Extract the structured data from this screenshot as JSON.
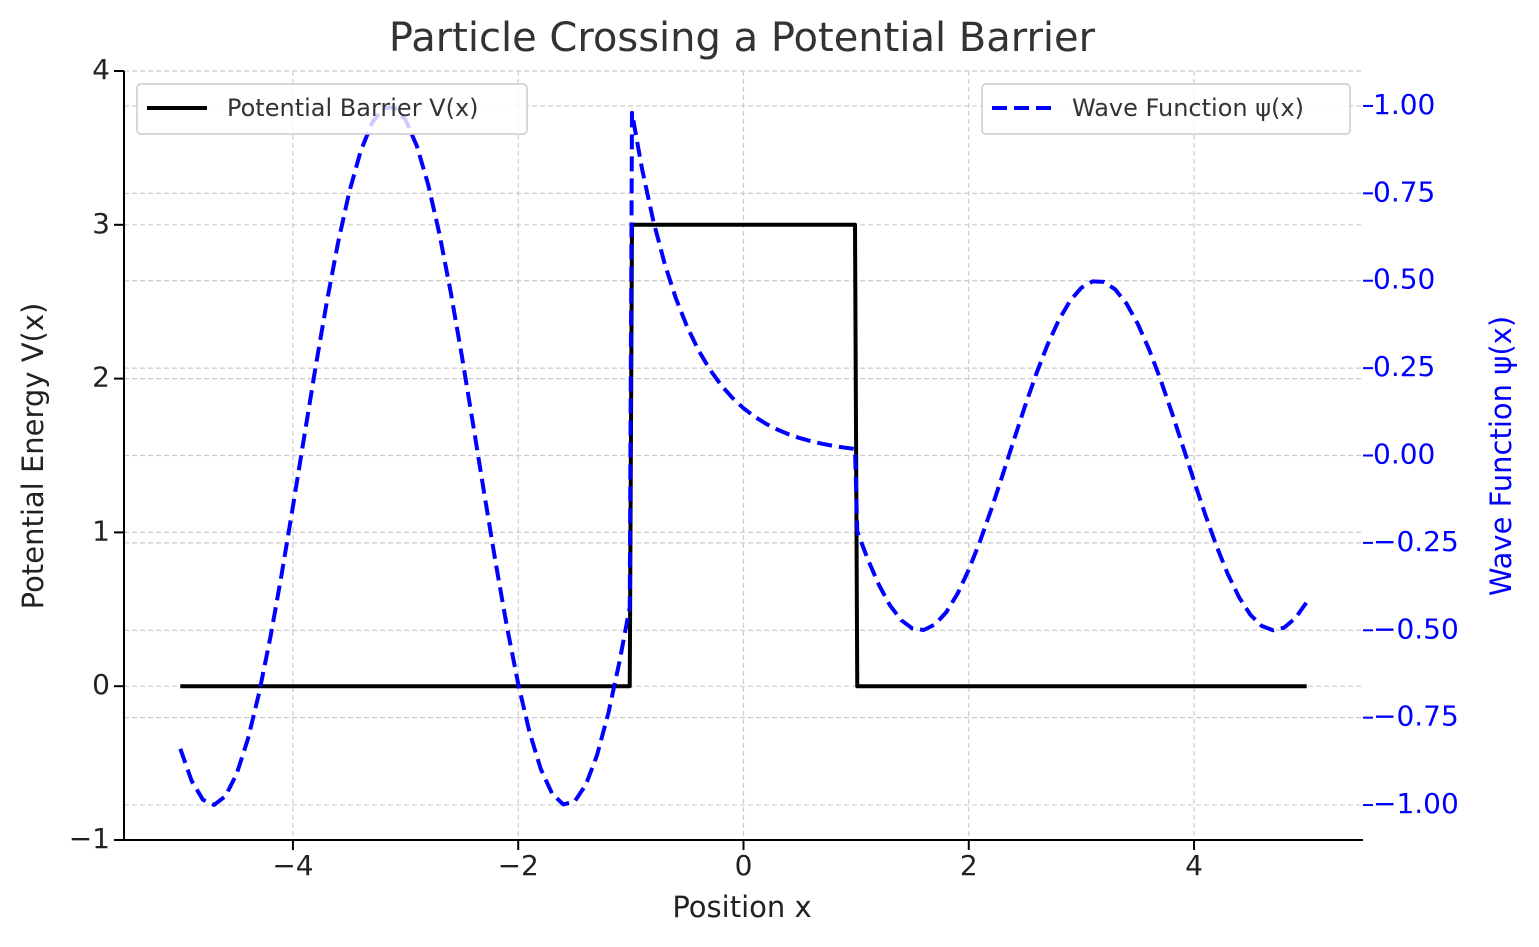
{
  "chart_data": {
    "type": "line",
    "title": "Particle Crossing a Potential Barrier",
    "xlabel": "Position x",
    "ylabel": "Potential Energy V(x)",
    "y2label": "Wave Function ψ(x)",
    "x": [
      -5.0,
      -4.9,
      -4.8,
      -4.7,
      -4.6,
      -4.5,
      -4.4,
      -4.3,
      -4.2,
      -4.1,
      -4.0,
      -3.9,
      -3.8,
      -3.7,
      -3.6,
      -3.5,
      -3.4,
      -3.3,
      -3.2,
      -3.1,
      -3.0,
      -2.9,
      -2.8,
      -2.7,
      -2.6,
      -2.5,
      -2.4,
      -2.3,
      -2.2,
      -2.1,
      -2.0,
      -1.9,
      -1.8,
      -1.7,
      -1.6,
      -1.5,
      -1.4,
      -1.3,
      -1.2,
      -1.1,
      -1.01,
      -0.99,
      -0.9,
      -0.8,
      -0.7,
      -0.6,
      -0.5,
      -0.4,
      -0.3,
      -0.2,
      -0.1,
      0.0,
      0.1,
      0.2,
      0.3,
      0.4,
      0.5,
      0.6,
      0.7,
      0.8,
      0.9,
      0.99,
      1.01,
      1.1,
      1.2,
      1.3,
      1.4,
      1.5,
      1.6,
      1.7,
      1.8,
      1.9,
      2.0,
      2.1,
      2.2,
      2.3,
      2.4,
      2.5,
      2.6,
      2.7,
      2.8,
      2.9,
      3.0,
      3.1,
      3.2,
      3.3,
      3.4,
      3.5,
      3.6,
      3.7,
      3.8,
      3.9,
      4.0,
      4.1,
      4.2,
      4.3,
      4.4,
      4.5,
      4.6,
      4.7,
      4.8,
      4.9,
      5.0
    ],
    "series": [
      {
        "name": "Potential Barrier V(x)",
        "color": "#000000",
        "linestyle": "solid",
        "axis": "y",
        "legend_loc": "upper left",
        "values": [
          0,
          0,
          0,
          0,
          0,
          0,
          0,
          0,
          0,
          0,
          0,
          0,
          0,
          0,
          0,
          0,
          0,
          0,
          0,
          0,
          0,
          0,
          0,
          0,
          0,
          0,
          0,
          0,
          0,
          0,
          0,
          0,
          0,
          0,
          0,
          0,
          0,
          0,
          0,
          0,
          0,
          3,
          3,
          3,
          3,
          3,
          3,
          3,
          3,
          3,
          3,
          3,
          3,
          3,
          3,
          3,
          3,
          3,
          3,
          3,
          3,
          3,
          0,
          0,
          0,
          0,
          0,
          0,
          0,
          0,
          0,
          0,
          0,
          0,
          0,
          0,
          0,
          0,
          0,
          0,
          0,
          0,
          0,
          0,
          0,
          0,
          0,
          0,
          0,
          0,
          0,
          0,
          0,
          0,
          0,
          0,
          0,
          0,
          0,
          0,
          0,
          0,
          0
        ]
      },
      {
        "name": "Wave Function ψ(x)",
        "color": "#0000ff",
        "linestyle": "dashed",
        "axis": "y2",
        "legend_loc": "upper right",
        "values": [
          -0.8391,
          -0.9304,
          -0.9847,
          -0.9997,
          -0.9748,
          -0.9111,
          -0.8111,
          -0.6787,
          -0.5193,
          -0.3392,
          -0.1455,
          0.054,
          0.2513,
          0.4385,
          0.6084,
          0.7539,
          0.8694,
          0.9502,
          0.9932,
          0.9965,
          0.9602,
          0.8855,
          0.7756,
          0.6347,
          0.4685,
          0.2837,
          0.0875,
          -0.1122,
          -0.3073,
          -0.4903,
          -0.6536,
          -0.791,
          -0.8968,
          -0.9668,
          -0.9983,
          -0.99,
          -0.9422,
          -0.8569,
          -0.7374,
          -0.5885,
          -0.4343,
          0.9802,
          0.8187,
          0.6703,
          0.5488,
          0.4493,
          0.3679,
          0.3012,
          0.2466,
          0.2019,
          0.1653,
          0.1353,
          0.1108,
          0.0907,
          0.0743,
          0.0608,
          0.0498,
          0.0408,
          0.0334,
          0.0273,
          0.0224,
          0.0187,
          -0.2172,
          -0.2943,
          -0.3687,
          -0.4285,
          -0.4711,
          -0.495,
          -0.4992,
          -0.4834,
          -0.4484,
          -0.3955,
          -0.3268,
          -0.2452,
          -0.1537,
          -0.0561,
          0.0438,
          0.1419,
          0.2343,
          0.3174,
          0.3878,
          0.4428,
          0.4801,
          0.4983,
          0.4966,
          0.4751,
          0.4347,
          0.3769,
          0.3042,
          0.2193,
          0.1257,
          0.027,
          -0.0728,
          -0.1696,
          -0.2597,
          -0.3394,
          -0.4056,
          -0.4556,
          -0.4874,
          -0.4999,
          -0.4924,
          -0.4652,
          -0.4196
        ]
      }
    ],
    "xlim": [
      -5.5,
      5.5
    ],
    "xticks": [
      {
        "value": -4,
        "label": "−4"
      },
      {
        "value": -2,
        "label": "−2"
      },
      0,
      2,
      4
    ],
    "ylim": [
      -1,
      4
    ],
    "yticks": [
      {
        "value": -1,
        "label": "−1"
      },
      0,
      1,
      2,
      3,
      4
    ],
    "y2lim": [
      -1.1,
      1.1
    ],
    "y2ticks": [
      {
        "value": -1,
        "label": "−1.00"
      },
      {
        "value": -0.75,
        "label": "−0.75"
      },
      {
        "value": -0.5,
        "label": "−0.50"
      },
      {
        "value": -0.25,
        "label": "−0.25"
      },
      {
        "value": 0,
        "label": "0.00"
      },
      {
        "value": 0.25,
        "label": "0.25"
      },
      {
        "value": 0.5,
        "label": "0.50"
      },
      {
        "value": 0.75,
        "label": "0.75"
      },
      {
        "value": 1,
        "label": "1.00"
      }
    ],
    "y2color": "#0000ff",
    "grid": true
  }
}
